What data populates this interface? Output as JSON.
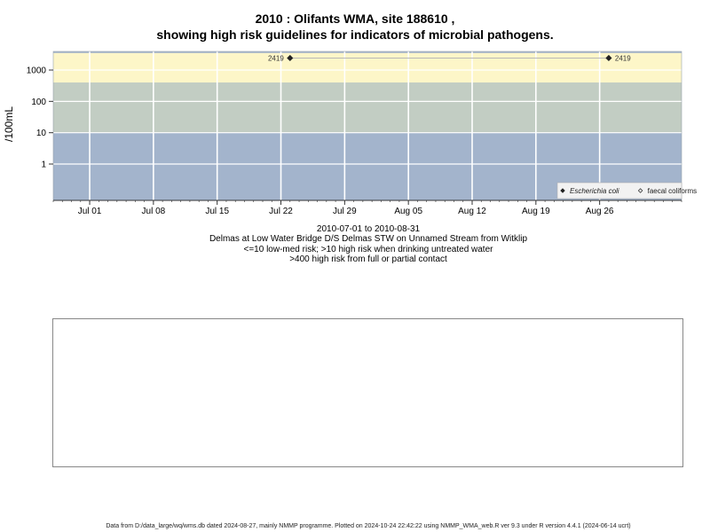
{
  "titles": {
    "line1": "2010 : Olifants WMA, site 188610 ,",
    "line2": "showing high risk guidelines for indicators of microbial pathogens."
  },
  "subtitles": {
    "line1": "2010-07-01 to 2010-08-31",
    "line2": "Delmas at Low Water Bridge D/S Delmas STW on Unnamed Stream from Witklip",
    "line3": "<=10 low-med risk; >10 high risk when drinking untreated water",
    "line4": ">400 high risk from full or partial contact"
  },
  "footer": "Data from D:/data_large/wq/wms.db dated 2024-08-27, mainly NMMP programme. Plotted on 2024-10-24 22:42:22 using NMMP_WMA_web.R ver 9.3 under R version 4.4.1 (2024-06-14 ucrt)",
  "chart_data": {
    "type": "scatter",
    "y_scale": "log",
    "ylabel": "/100mL",
    "xlim": [
      "2010-06-27",
      "2010-09-04"
    ],
    "x_ticks": [
      {
        "date": "2010-07-01",
        "label": "Jul 01"
      },
      {
        "date": "2010-07-08",
        "label": "Jul 08"
      },
      {
        "date": "2010-07-15",
        "label": "Jul 15"
      },
      {
        "date": "2010-07-22",
        "label": "Jul 22"
      },
      {
        "date": "2010-07-29",
        "label": "Jul 29"
      },
      {
        "date": "2010-08-05",
        "label": "Aug 05"
      },
      {
        "date": "2010-08-12",
        "label": "Aug 12"
      },
      {
        "date": "2010-08-19",
        "label": "Aug 19"
      },
      {
        "date": "2010-08-26",
        "label": "Aug 26"
      }
    ],
    "y_ticks": [
      {
        "value": 1,
        "label": "1"
      },
      {
        "value": 10,
        "label": "10"
      },
      {
        "value": 100,
        "label": "100"
      },
      {
        "value": 1000,
        "label": "1000"
      }
    ],
    "bands": [
      {
        "from": 10,
        "to": 400,
        "color": "#c2cdc3"
      },
      {
        "from": 400,
        "to": 3500,
        "color": "#fdf6c8"
      }
    ],
    "plot_background": "#a3b4cc",
    "series": [
      {
        "name": "Escherichia coli",
        "marker": "filled-diamond",
        "color": "#222222",
        "connect": true,
        "points": [
          {
            "x": "2010-07-23",
            "y": 2419,
            "label": "2419"
          },
          {
            "x": "2010-08-27",
            "y": 2419,
            "label": "2419"
          }
        ]
      },
      {
        "name": "faecal coliforms",
        "marker": "open-diamond",
        "color": "#222222",
        "points": []
      }
    ],
    "grid": true,
    "legend_position": "bottom-right"
  }
}
